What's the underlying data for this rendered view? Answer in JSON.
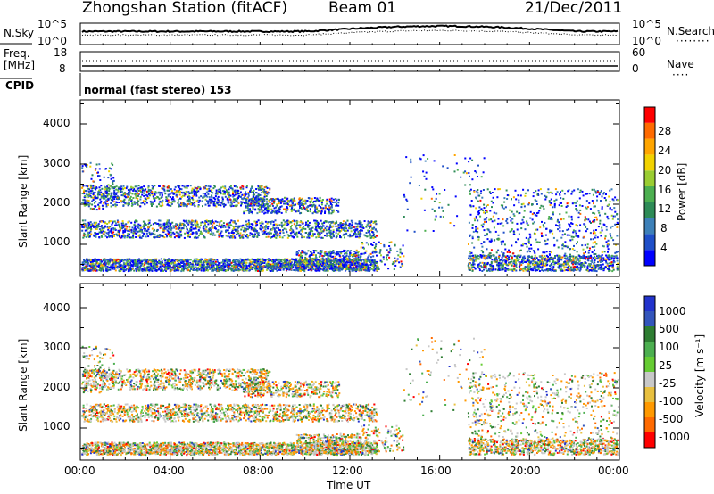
{
  "header": {
    "station": "Zhongshan Station (fitACF)",
    "beam": "Beam 01",
    "date": "21/Dec/2011"
  },
  "sky_panel": {
    "left_label": "N.Sky",
    "right_label": "N.Search",
    "left_ticks": [
      "10^5",
      "10^0"
    ],
    "right_ticks": [
      "10^5",
      "10^0"
    ]
  },
  "freq_panel": {
    "left_label_1": "Freq.",
    "left_label_2": "[MHz]",
    "left_ticks": [
      "18",
      "8"
    ],
    "right_ticks": [
      "60",
      "0"
    ],
    "right_label": "Nave"
  },
  "cpid": {
    "label": "CPID",
    "value": "normal (fast stereo) 153"
  },
  "colors": {
    "power_scale": [
      "#0000ff",
      "#1f4fc8",
      "#3d80b8",
      "#2e8b57",
      "#4caf50",
      "#9acd32",
      "#f2d200",
      "#ffa500",
      "#ff6a00",
      "#ff0000"
    ],
    "velocity_scale": [
      "#2233cc",
      "#3355bb",
      "#2e7d32",
      "#4caf50",
      "#66cc33",
      "#c8c8c8",
      "#e8c040",
      "#ff9900",
      "#ff6a00",
      "#ff0000"
    ]
  },
  "chart_data": [
    {
      "type": "heatmap",
      "name": "power",
      "ylabel": "Slant Range [km]",
      "yticks": [
        "1000",
        "2000",
        "3000",
        "4000"
      ],
      "ylim": [
        200,
        4600
      ],
      "colorbar_label": "Power [dB]",
      "colorbar_ticks": [
        "4",
        "8",
        "12",
        "16",
        "20",
        "24",
        "28"
      ],
      "colorbar_range": [
        0,
        30
      ]
    },
    {
      "type": "heatmap",
      "name": "velocity",
      "ylabel": "Slant Range [km]",
      "yticks": [
        "1000",
        "2000",
        "3000",
        "4000"
      ],
      "ylim": [
        200,
        4600
      ],
      "colorbar_label": "Velocity [m s⁻¹]",
      "colorbar_ticks": [
        "1000",
        "500",
        "100",
        "25",
        "-25",
        "-100",
        "-500",
        "-1000"
      ]
    }
  ],
  "x_axis": {
    "label": "Time UT",
    "ticks": [
      "00:00",
      "04:00",
      "08:00",
      "12:00",
      "16:00",
      "20:00",
      "00:00"
    ]
  }
}
